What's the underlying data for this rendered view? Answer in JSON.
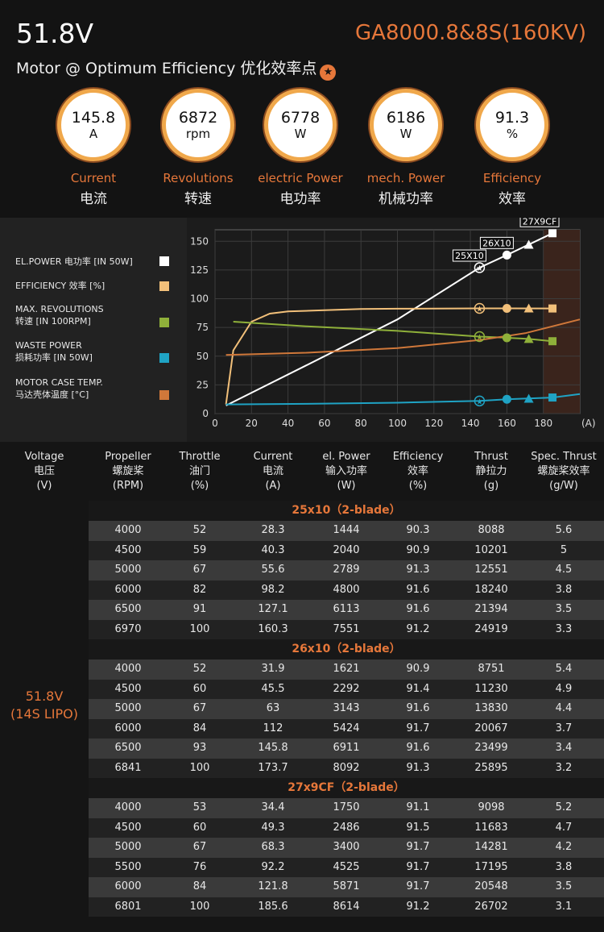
{
  "header": {
    "voltage": "51.8V",
    "model": "GA8000.8&8S(160KV)",
    "subtitle": "Motor @ Optimum Efficiency  优化效率点"
  },
  "metrics": [
    {
      "value": "145.8",
      "unit": "A",
      "en": "Current",
      "cn": "电流"
    },
    {
      "value": "6872",
      "unit": "rpm",
      "en": "Revolutions",
      "cn": "转速"
    },
    {
      "value": "6778",
      "unit": "W",
      "en": "electric Power",
      "cn": "电功率"
    },
    {
      "value": "6186",
      "unit": "W",
      "en": "mech. Power",
      "cn": "机械功率"
    },
    {
      "value": "91.3",
      "unit": "%",
      "en": "Efficiency",
      "cn": "效率"
    }
  ],
  "legend": [
    {
      "label": "EL.POWER 电功率 [IN 50W]",
      "color": "#ffffff"
    },
    {
      "label": "EFFICIENCY 效率 [%]",
      "color": "#f2c07a"
    },
    {
      "label": "MAX. REVOLUTIONS\n转速 [IN 100RPM]",
      "color": "#8fb03a"
    },
    {
      "label": "WASTE POWER\n损耗功率 [IN 50W]",
      "color": "#1fa3c4"
    },
    {
      "label": "MOTOR CASE TEMP.\n马达壳体温度 [°C]",
      "color": "#d0783a"
    }
  ],
  "chart_data": {
    "type": "line",
    "xlabel": "(A)",
    "xlim": [
      0,
      200
    ],
    "ylim": [
      0,
      160
    ],
    "x_ticks": [
      0,
      20,
      40,
      60,
      80,
      100,
      120,
      140,
      160,
      180
    ],
    "y_ticks": [
      0,
      25,
      50,
      75,
      100,
      125,
      150
    ],
    "series": [
      {
        "name": "EL.POWER 电功率 [IN 50W]",
        "color": "#ffffff",
        "x": [
          6,
          50,
          100,
          145,
          160,
          185
        ],
        "y": [
          7,
          42,
          82,
          127,
          138,
          157
        ]
      },
      {
        "name": "EFFICIENCY 效率 [%]",
        "color": "#f2c07a",
        "x": [
          6,
          10,
          20,
          30,
          40,
          60,
          80,
          100,
          145,
          160,
          185
        ],
        "y": [
          8,
          55,
          80,
          87,
          89,
          90,
          91,
          91.3,
          91.6,
          91.6,
          91.5
        ]
      },
      {
        "name": "MAX. REVOLUTIONS 转速 [IN 100RPM]",
        "color": "#8fb03a",
        "x": [
          10,
          50,
          100,
          145,
          160,
          172,
          185
        ],
        "y": [
          80,
          76,
          72,
          67,
          66,
          65,
          63
        ]
      },
      {
        "name": "WASTE POWER 损耗功率 [IN 50W]",
        "color": "#1fa3c4",
        "x": [
          6,
          50,
          100,
          145,
          160,
          185,
          200
        ],
        "y": [
          8,
          8.5,
          9.5,
          11,
          12.5,
          14,
          17
        ]
      },
      {
        "name": "MOTOR CASE TEMP. 马达壳体温度 [°C]",
        "color": "#d0783a",
        "x": [
          6,
          50,
          100,
          145,
          170,
          200
        ],
        "y": [
          51,
          53,
          57,
          64,
          70,
          82
        ]
      }
    ],
    "markers": [
      {
        "label": "25X10",
        "x": 145,
        "y": 127,
        "shape": "star"
      },
      {
        "label": "26X10",
        "x": 160,
        "y": 138,
        "shape": "circle"
      },
      {
        "label": "27X9CF",
        "x": 185,
        "y": 157,
        "shape": "square"
      }
    ],
    "marker_points": [
      {
        "x": 145,
        "y": 91.6,
        "shape": "star",
        "color": "#f2c07a"
      },
      {
        "x": 160,
        "y": 91.6,
        "shape": "circle",
        "color": "#f2c07a"
      },
      {
        "x": 172,
        "y": 91.6,
        "shape": "triangle",
        "color": "#f2c07a"
      },
      {
        "x": 185,
        "y": 91.5,
        "shape": "square",
        "color": "#f2c07a"
      },
      {
        "x": 145,
        "y": 67,
        "shape": "star",
        "color": "#8fb03a"
      },
      {
        "x": 160,
        "y": 66,
        "shape": "circle",
        "color": "#8fb03a"
      },
      {
        "x": 172,
        "y": 65,
        "shape": "triangle",
        "color": "#8fb03a"
      },
      {
        "x": 185,
        "y": 63,
        "shape": "square",
        "color": "#8fb03a"
      },
      {
        "x": 145,
        "y": 11,
        "shape": "star",
        "color": "#1fa3c4"
      },
      {
        "x": 160,
        "y": 12.5,
        "shape": "circle",
        "color": "#1fa3c4"
      },
      {
        "x": 172,
        "y": 13,
        "shape": "triangle",
        "color": "#1fa3c4"
      },
      {
        "x": 185,
        "y": 14,
        "shape": "square",
        "color": "#1fa3c4"
      },
      {
        "x": 172,
        "y": 147,
        "shape": "triangle",
        "color": "#ffffff"
      }
    ]
  },
  "table": {
    "headers": [
      {
        "en": "Voltage",
        "cn": "电压",
        "unit": "(V)"
      },
      {
        "en": "Propeller",
        "cn": "螺旋桨",
        "unit": "(RPM)"
      },
      {
        "en": "Throttle",
        "cn": "油门",
        "unit": "(%)"
      },
      {
        "en": "Current",
        "cn": "电流",
        "unit": "(A)"
      },
      {
        "en": "el. Power",
        "cn": "输入功率",
        "unit": "(W)"
      },
      {
        "en": "Efficiency",
        "cn": "效率",
        "unit": "(%)"
      },
      {
        "en": "Thrust",
        "cn": "静拉力",
        "unit": "(g)"
      },
      {
        "en": "Spec. Thrust",
        "cn": "螺旋桨效率",
        "unit": "(g/W)"
      }
    ],
    "voltage_label": "51.8V",
    "voltage_sub": "(14S LIPO)",
    "groups": [
      {
        "title": "25x10（2-blade）",
        "rows": [
          [
            "4000",
            "52",
            "28.3",
            "1444",
            "90.3",
            "8088",
            "5.6"
          ],
          [
            "4500",
            "59",
            "40.3",
            "2040",
            "90.9",
            "10201",
            "5"
          ],
          [
            "5000",
            "67",
            "55.6",
            "2789",
            "91.3",
            "12551",
            "4.5"
          ],
          [
            "6000",
            "82",
            "98.2",
            "4800",
            "91.6",
            "18240",
            "3.8"
          ],
          [
            "6500",
            "91",
            "127.1",
            "6113",
            "91.6",
            "21394",
            "3.5"
          ],
          [
            "6970",
            "100",
            "160.3",
            "7551",
            "91.2",
            "24919",
            "3.3"
          ]
        ]
      },
      {
        "title": "26x10（2-blade）",
        "rows": [
          [
            "4000",
            "52",
            "31.9",
            "1621",
            "90.9",
            "8751",
            "5.4"
          ],
          [
            "4500",
            "60",
            "45.5",
            "2292",
            "91.4",
            "11230",
            "4.9"
          ],
          [
            "5000",
            "67",
            "63",
            "3143",
            "91.6",
            "13830",
            "4.4"
          ],
          [
            "6000",
            "84",
            "112",
            "5424",
            "91.7",
            "20067",
            "3.7"
          ],
          [
            "6500",
            "93",
            "145.8",
            "6911",
            "91.6",
            "23499",
            "3.4"
          ],
          [
            "6841",
            "100",
            "173.7",
            "8092",
            "91.3",
            "25895",
            "3.2"
          ]
        ]
      },
      {
        "title": "27x9CF（2-blade）",
        "rows": [
          [
            "4000",
            "53",
            "34.4",
            "1750",
            "91.1",
            "9098",
            "5.2"
          ],
          [
            "4500",
            "60",
            "49.3",
            "2486",
            "91.5",
            "11683",
            "4.7"
          ],
          [
            "5000",
            "67",
            "68.3",
            "3400",
            "91.7",
            "14281",
            "4.2"
          ],
          [
            "5500",
            "76",
            "92.2",
            "4525",
            "91.7",
            "17195",
            "3.8"
          ],
          [
            "6000",
            "84",
            "121.8",
            "5871",
            "91.7",
            "20548",
            "3.5"
          ],
          [
            "6801",
            "100",
            "185.6",
            "8614",
            "91.2",
            "26702",
            "3.1"
          ]
        ]
      }
    ]
  }
}
